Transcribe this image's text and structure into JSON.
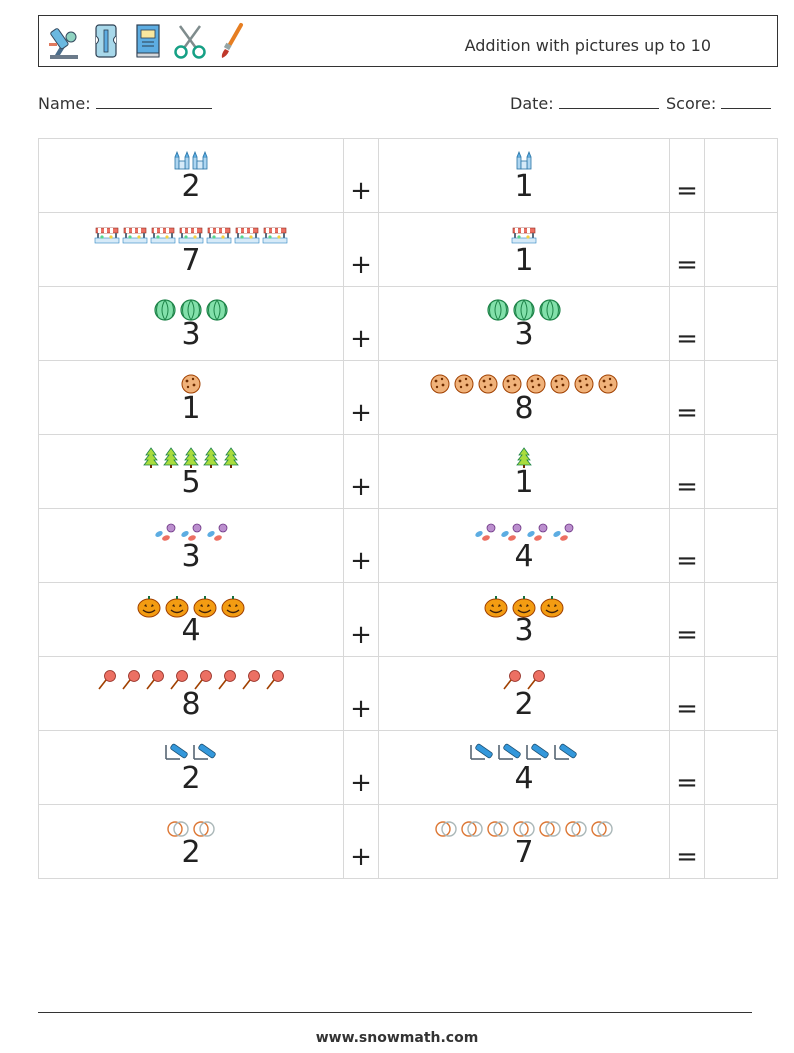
{
  "header": {
    "title": "Addition with pictures up to 10",
    "icons": [
      "microscope-icon",
      "pencil-sharpener-icon",
      "book-icon",
      "scissors-icon",
      "paintbrush-icon"
    ]
  },
  "fields": {
    "name_label": "Name:",
    "date_label": "Date:",
    "score_label": "Score:"
  },
  "operators": {
    "plus": "+",
    "equals": "="
  },
  "problems": [
    {
      "a": 2,
      "b": 1,
      "icon": "castle-icon"
    },
    {
      "a": 7,
      "b": 1,
      "icon": "market-stall-icon"
    },
    {
      "a": 3,
      "b": 3,
      "icon": "watermelon-icon"
    },
    {
      "a": 1,
      "b": 8,
      "icon": "cookie-icon"
    },
    {
      "a": 5,
      "b": 1,
      "icon": "pine-tree-icon"
    },
    {
      "a": 3,
      "b": 4,
      "icon": "candy-icon"
    },
    {
      "a": 4,
      "b": 3,
      "icon": "pumpkin-icon"
    },
    {
      "a": 8,
      "b": 2,
      "icon": "lollipop-icon"
    },
    {
      "a": 2,
      "b": 4,
      "icon": "marker-icon"
    },
    {
      "a": 2,
      "b": 7,
      "icon": "rings-icon"
    }
  ],
  "footer": {
    "url": "www.snowmath.com"
  }
}
